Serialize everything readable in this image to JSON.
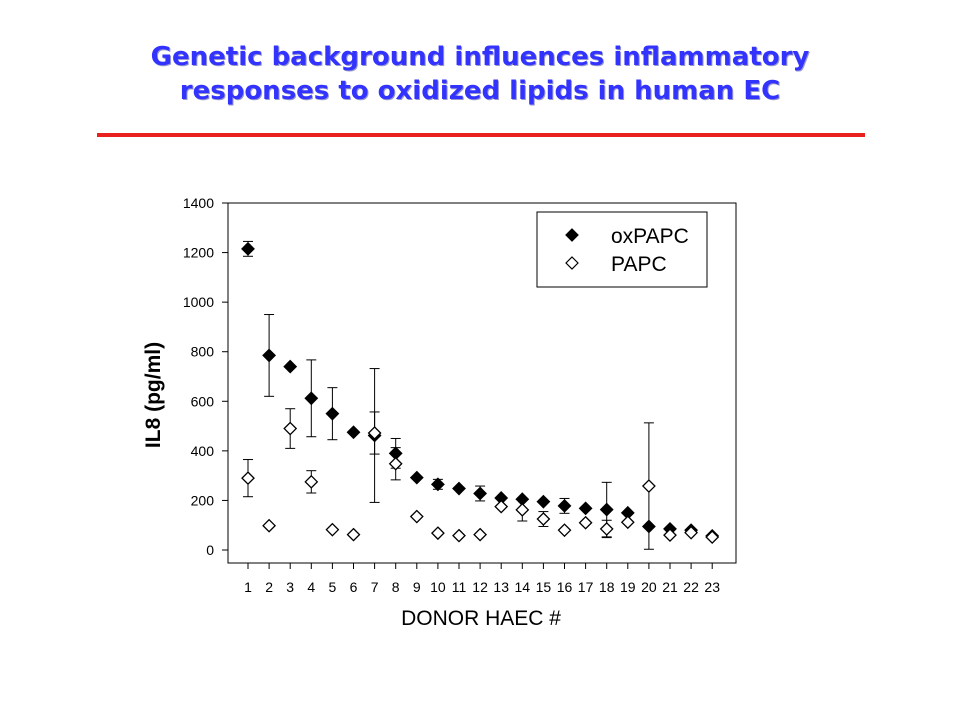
{
  "slide": {
    "title_line1": "Genetic background influences inflammatory",
    "title_line2": "responses to oxidized lipids in human EC"
  },
  "colors": {
    "title": "#3333ff",
    "rule": "#e8201e",
    "ink": "#000000"
  },
  "chart_data": {
    "type": "scatter",
    "xlabel": "DONOR HAEC #",
    "ylabel": "IL8 (pg/ml)",
    "ylim": [
      0,
      1400
    ],
    "yticks": [
      0,
      200,
      400,
      600,
      800,
      1000,
      1200,
      1400
    ],
    "categories": [
      "1",
      "2",
      "3",
      "4",
      "5",
      "6",
      "7",
      "8",
      "9",
      "10",
      "11",
      "12",
      "13",
      "14",
      "15",
      "16",
      "17",
      "18",
      "19",
      "20",
      "21",
      "22",
      "23"
    ],
    "grid": false,
    "legend_position": "top-right",
    "series": [
      {
        "name": "oxPAPC",
        "marker": "filled-diamond",
        "values": [
          1215,
          785,
          740,
          612,
          550,
          475,
          462,
          390,
          292,
          265,
          248,
          228,
          210,
          205,
          195,
          178,
          168,
          163,
          150,
          95,
          85,
          80,
          57
        ],
        "errors": [
          30,
          165,
          0,
          155,
          105,
          0,
          270,
          60,
          0,
          20,
          0,
          30,
          0,
          0,
          0,
          30,
          0,
          110,
          0,
          0,
          0,
          0,
          0
        ]
      },
      {
        "name": "PAPC",
        "marker": "open-diamond",
        "values": [
          290,
          98,
          490,
          275,
          82,
          62,
          472,
          348,
          135,
          68,
          58,
          62,
          175,
          162,
          125,
          80,
          110,
          85,
          112,
          258,
          60,
          70,
          52
        ],
        "errors": [
          75,
          0,
          80,
          45,
          0,
          0,
          85,
          65,
          0,
          0,
          0,
          0,
          0,
          45,
          30,
          0,
          0,
          35,
          0,
          255,
          0,
          0,
          0
        ]
      }
    ]
  }
}
